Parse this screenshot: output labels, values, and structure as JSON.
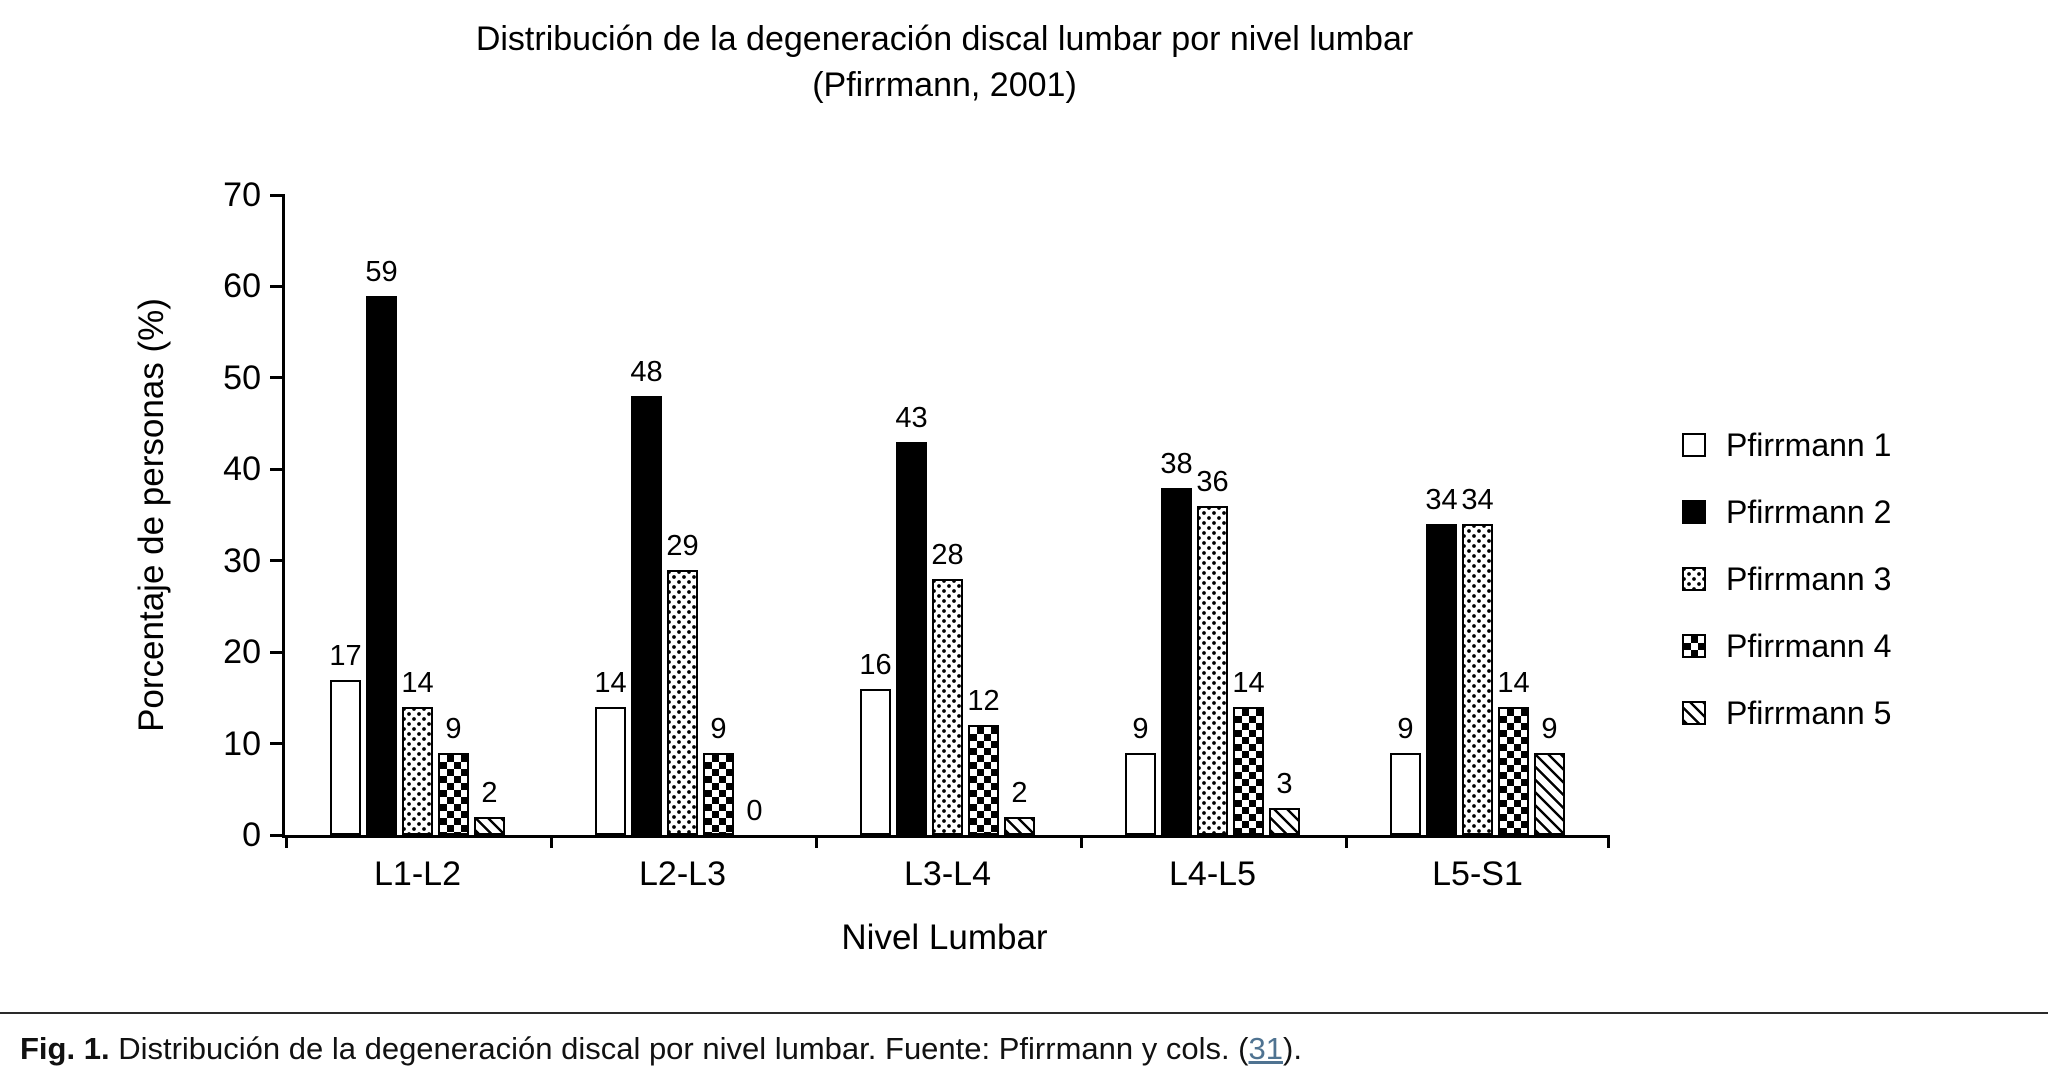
{
  "title": {
    "line1": "Distribución de la degeneración discal lumbar por nivel lumbar",
    "line2": "(Pfirrmann, 2001)"
  },
  "chart_data": {
    "type": "bar",
    "title": "Distribución de la degeneración discal lumbar por nivel lumbar (Pfirrmann, 2001)",
    "categories": [
      "L1-L2",
      "L2-L3",
      "L3-L4",
      "L4-L5",
      "L5-S1"
    ],
    "series": [
      {
        "name": "Pfirrmann 1",
        "pattern": "plain",
        "values": [
          17,
          14,
          16,
          9,
          9
        ]
      },
      {
        "name": "Pfirrmann 2",
        "pattern": "solid",
        "values": [
          59,
          48,
          43,
          38,
          34
        ]
      },
      {
        "name": "Pfirrmann 3",
        "pattern": "dots",
        "values": [
          14,
          29,
          28,
          36,
          34
        ]
      },
      {
        "name": "Pfirrmann 4",
        "pattern": "checker",
        "values": [
          9,
          9,
          12,
          14,
          14
        ]
      },
      {
        "name": "Pfirrmann 5",
        "pattern": "diag",
        "values": [
          2,
          0,
          2,
          3,
          9
        ]
      }
    ],
    "xlabel": "Nivel Lumbar",
    "ylabel": "Porcentaje de personas (%)",
    "ylim": [
      0,
      70
    ],
    "ytick_step": 10,
    "grid": false,
    "data_labels": true,
    "legend_position": "right",
    "bar_border_color": "#000000",
    "bar_fill_colors": {
      "plain": "#ffffff",
      "solid": "#000000"
    }
  },
  "caption": {
    "prefix": "Fig. 1.",
    "text": " Distribución de la degeneración discal por nivel lumbar. Fuente: Pfirrmann y cols. (",
    "link": "31",
    "suffix": ")."
  }
}
